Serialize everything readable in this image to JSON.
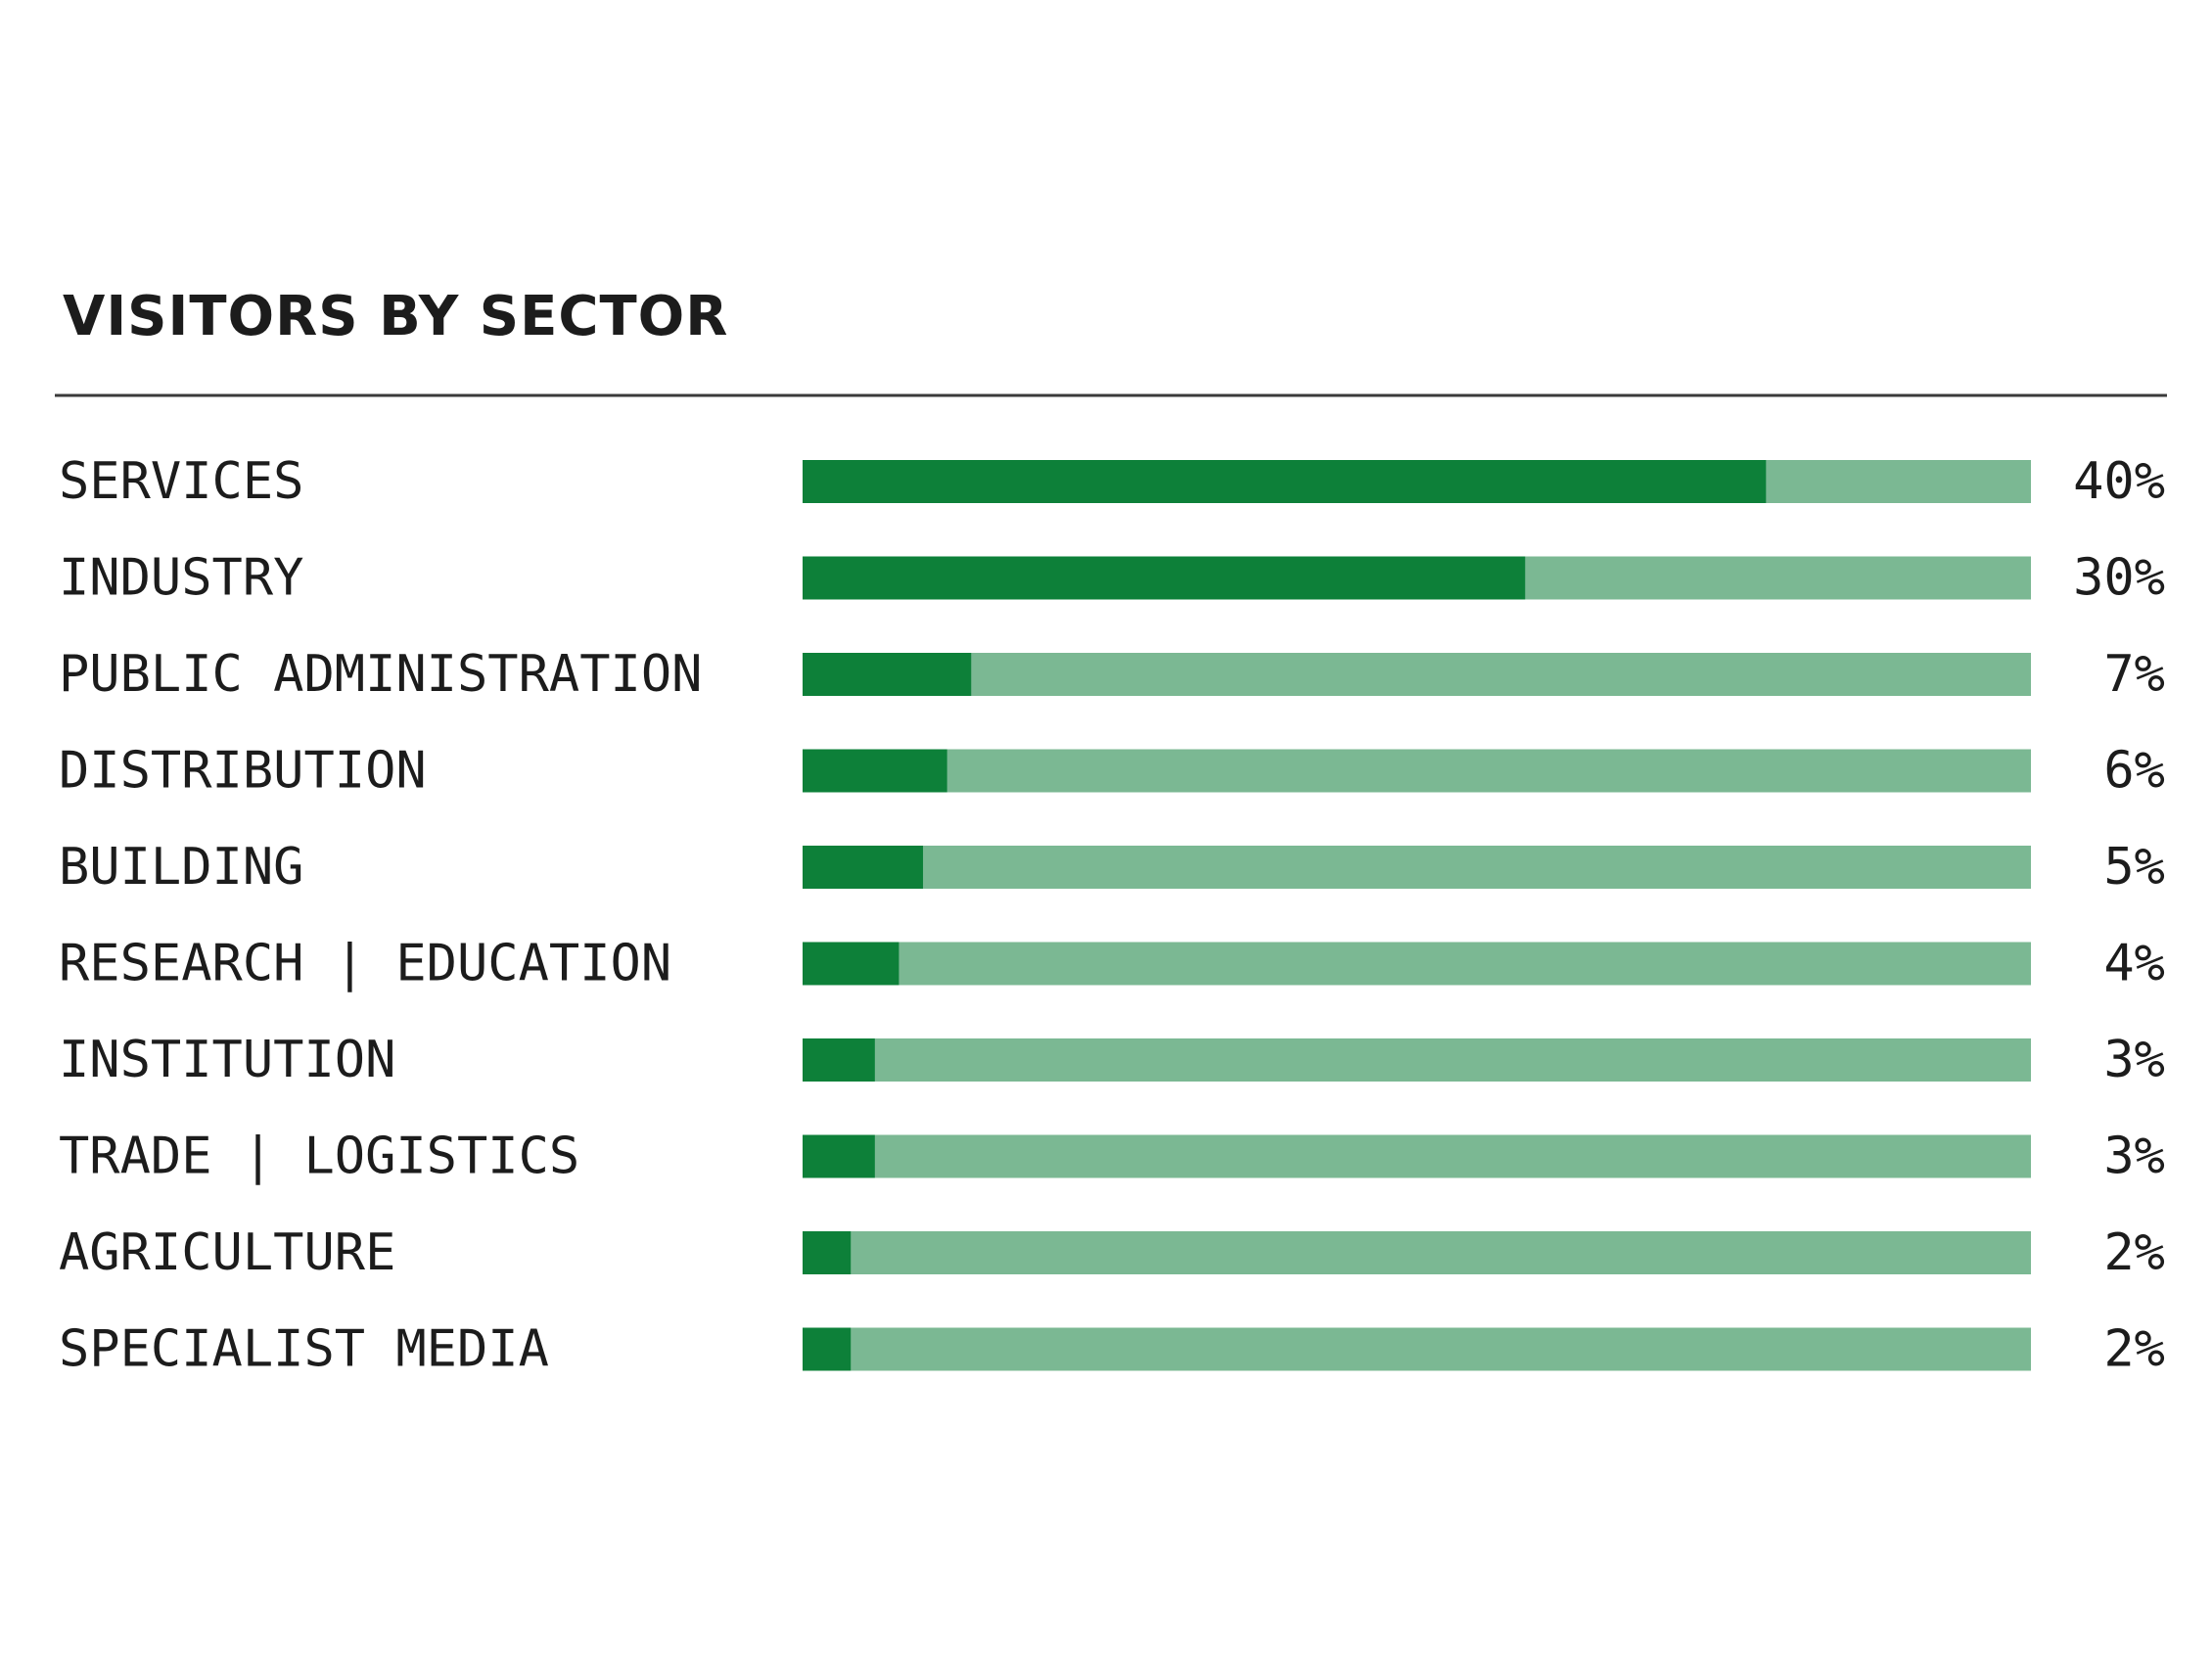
{
  "chart_data": {
    "type": "bar",
    "orientation": "horizontal",
    "title": "VISITORS BY SECTOR",
    "categories": [
      "SERVICES",
      "INDUSTRY",
      "PUBLIC ADMINISTRATION",
      "DISTRIBUTION",
      "BUILDING",
      "RESEARCH | EDUCATION",
      "INSTITUTION",
      "TRADE | LOGISTICS",
      "AGRICULTURE",
      "SPECIALIST MEDIA"
    ],
    "values": [
      40,
      30,
      7,
      6,
      5,
      4,
      3,
      3,
      2,
      2
    ],
    "value_labels": [
      "40%",
      "30%",
      "7%",
      "6%",
      "5%",
      "4%",
      "3%",
      "3%",
      "2%",
      "2%"
    ],
    "xlim": [
      0,
      51
    ],
    "unit": "%",
    "grid": false,
    "legend": "none",
    "colors": {
      "bar": "#0d8039",
      "track": "#7bb893",
      "text": "#1c1c1c",
      "rule": "#3a3a3a"
    }
  }
}
